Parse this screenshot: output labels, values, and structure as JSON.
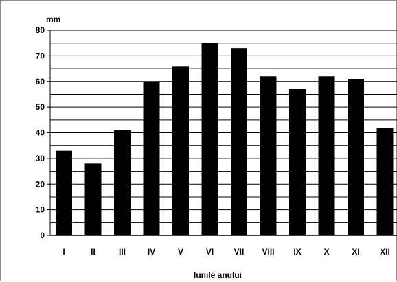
{
  "chart_data": {
    "type": "bar",
    "title": "",
    "xlabel": "lunile anului",
    "ylabel": "mm",
    "categories": [
      "I",
      "II",
      "III",
      "IV",
      "V",
      "VI",
      "VII",
      "VIII",
      "IX",
      "X",
      "XI",
      "XII"
    ],
    "values": [
      33,
      28,
      41,
      60,
      66,
      75,
      73,
      62,
      57,
      62,
      61,
      42
    ],
    "ylim": [
      0,
      80
    ],
    "yticks": [
      0,
      10,
      20,
      30,
      40,
      50,
      60,
      70,
      80
    ],
    "grid": true,
    "bar_color": "#000000"
  }
}
